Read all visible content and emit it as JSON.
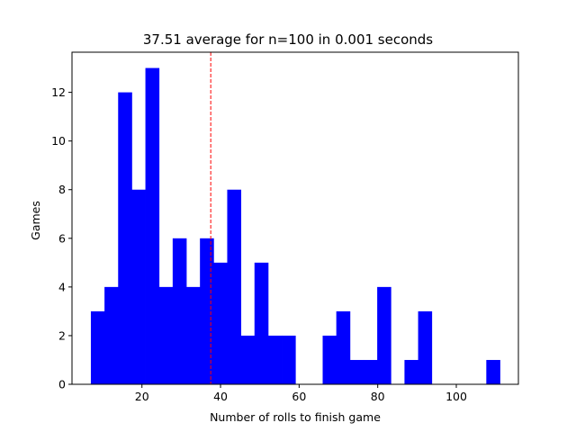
{
  "chart_data": {
    "type": "bar",
    "title": "37.51 average for n=100 in 0.001 seconds",
    "xlabel": "Number of rolls to finish game",
    "ylabel": "Games",
    "xlim": [
      2.2,
      115.8
    ],
    "ylim": [
      0,
      13.65
    ],
    "x_ticks": [
      20,
      40,
      60,
      80,
      100
    ],
    "y_ticks": [
      0,
      2,
      4,
      6,
      8,
      10,
      12
    ],
    "bin_start": 7,
    "bin_width": 3.47,
    "values": [
      3,
      4,
      12,
      8,
      13,
      4,
      6,
      4,
      6,
      5,
      8,
      2,
      5,
      2,
      2,
      0,
      0,
      2,
      3,
      1,
      1,
      4,
      0,
      1,
      3,
      0,
      0,
      0,
      0,
      1
    ],
    "mean_line": {
      "x": 37.51,
      "color": "#ff0000",
      "style": "dashed"
    },
    "bar_color": "#0000ff",
    "grid": false,
    "legend": "none"
  }
}
